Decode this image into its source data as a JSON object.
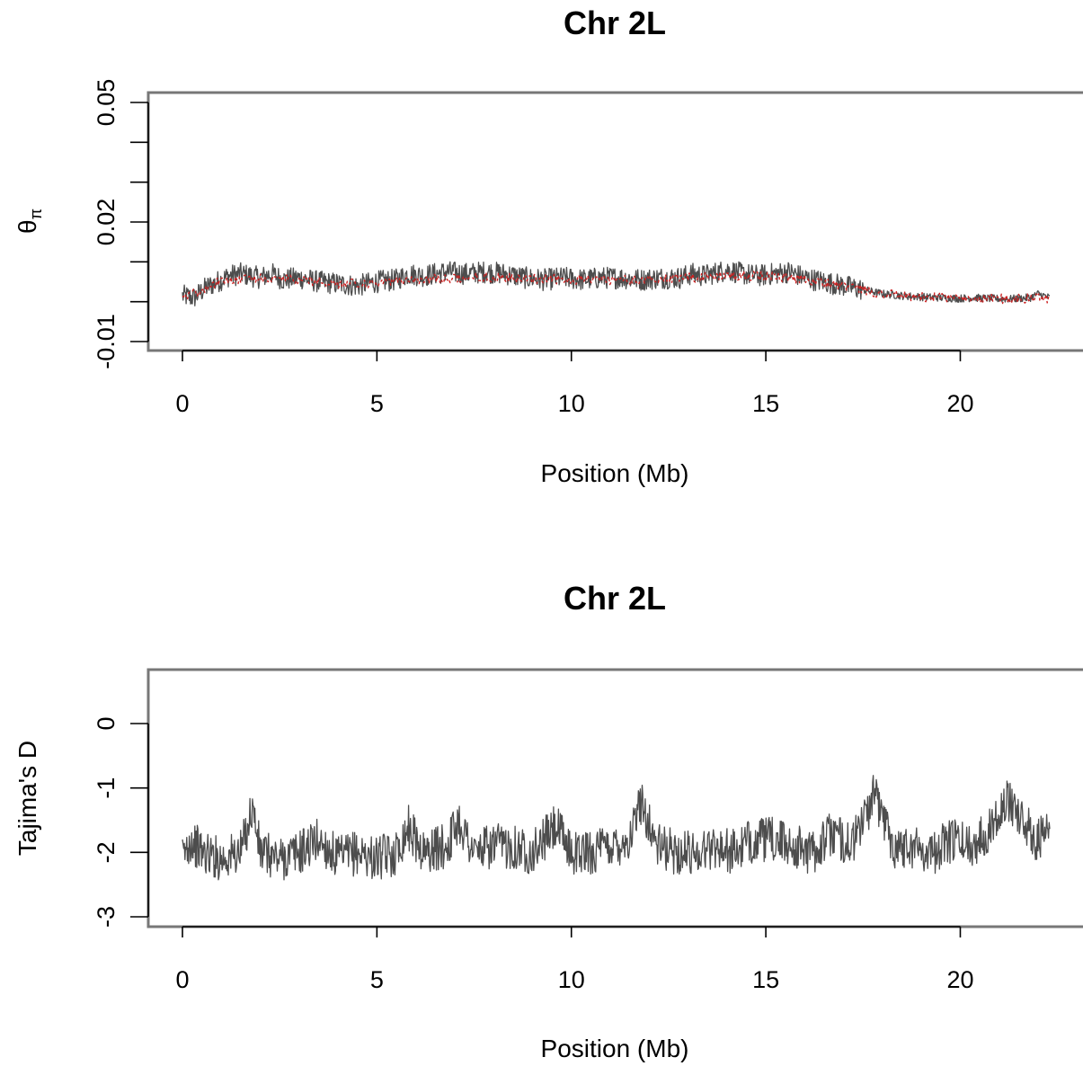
{
  "chart_data": [
    {
      "type": "line",
      "title": "Chr 2L",
      "xlabel": "Position (Mb)",
      "ylabel": "θπ",
      "ylabel_main": "θ",
      "ylabel_sub": "π",
      "xlim": [
        -0.88,
        23.3
      ],
      "ylim": [
        -0.0122,
        0.0528
      ],
      "xticks": [
        0,
        5,
        10,
        15,
        20
      ],
      "xtick_labels": [
        "0",
        "5",
        "10",
        "15",
        "20"
      ],
      "yticks": [
        -0.01,
        0.0,
        0.01,
        0.02,
        0.03,
        0.04,
        0.05
      ],
      "ytick_labels": [
        "-0.01",
        "",
        "",
        "0.02",
        "",
        "",
        "0.05"
      ],
      "grid": false,
      "series": [
        {
          "role": "windowed",
          "color": "#4d4d4d",
          "x": [
            0.0,
            0.3,
            0.6,
            1.0,
            1.2,
            1.5,
            2.0,
            2.3,
            2.6,
            3.0,
            3.5,
            4.0,
            4.5,
            5.0,
            5.5,
            5.8,
            6.2,
            6.8,
            7.3,
            7.8,
            8.3,
            8.8,
            9.3,
            9.8,
            10.3,
            10.8,
            11.3,
            11.8,
            12.3,
            12.8,
            13.1,
            13.4,
            13.8,
            14.0,
            14.4,
            14.8,
            15.2,
            15.6,
            16.0,
            16.5,
            17.0,
            17.5,
            18.0,
            18.5,
            19.0,
            19.5,
            20.0,
            20.3,
            20.8,
            21.3,
            21.8,
            22.0,
            22.3
          ],
          "y": [
            0.0015,
            0.001,
            0.0035,
            0.0055,
            0.0065,
            0.007,
            0.006,
            0.007,
            0.0055,
            0.006,
            0.005,
            0.0045,
            0.004,
            0.005,
            0.0055,
            0.007,
            0.0065,
            0.0075,
            0.007,
            0.0075,
            0.007,
            0.006,
            0.0055,
            0.006,
            0.0055,
            0.006,
            0.006,
            0.0055,
            0.006,
            0.006,
            0.007,
            0.0065,
            0.0075,
            0.008,
            0.007,
            0.0065,
            0.007,
            0.0075,
            0.006,
            0.005,
            0.004,
            0.003,
            0.002,
            0.0015,
            0.0012,
            0.001,
            0.0008,
            0.001,
            0.0008,
            0.0007,
            0.001,
            0.002,
            0.001
          ]
        },
        {
          "role": "smoothed",
          "color": "#cc2222",
          "x": [
            0.0,
            0.5,
            1.0,
            2.0,
            3.0,
            4.0,
            5.0,
            6.0,
            7.0,
            8.0,
            9.0,
            10.0,
            11.0,
            12.0,
            13.0,
            14.0,
            15.0,
            16.0,
            17.0,
            17.5,
            18.0,
            19.0,
            20.0,
            21.0,
            22.0,
            22.3
          ],
          "y": [
            0.0012,
            0.003,
            0.0055,
            0.006,
            0.0055,
            0.0045,
            0.0045,
            0.0055,
            0.006,
            0.0062,
            0.0058,
            0.0055,
            0.0055,
            0.0055,
            0.006,
            0.0065,
            0.0065,
            0.0055,
            0.004,
            0.003,
            0.002,
            0.0012,
            0.0008,
            0.0007,
            0.0008,
            0.0008
          ]
        }
      ]
    },
    {
      "type": "line",
      "title": "Chr 2L",
      "xlabel": "Position (Mb)",
      "ylabel": "Tajima's D",
      "xlim": [
        -0.88,
        23.3
      ],
      "ylim": [
        -3.15,
        0.85
      ],
      "xticks": [
        0,
        5,
        10,
        15,
        20
      ],
      "xtick_labels": [
        "0",
        "5",
        "10",
        "15",
        "20"
      ],
      "yticks": [
        -3,
        -2,
        -1,
        0
      ],
      "ytick_labels": [
        "-3",
        "-2",
        "-1",
        "0"
      ],
      "grid": false,
      "series": [
        {
          "role": "windowed",
          "color": "#4d4d4d",
          "x": [
            0.0,
            0.2,
            0.5,
            1.0,
            1.5,
            1.8,
            2.0,
            2.5,
            3.0,
            3.5,
            4.0,
            4.5,
            5.0,
            5.5,
            5.8,
            6.2,
            6.8,
            7.1,
            7.5,
            8.0,
            8.5,
            9.0,
            9.6,
            10.0,
            10.5,
            11.0,
            11.5,
            11.8,
            12.2,
            12.7,
            13.2,
            13.7,
            14.2,
            14.7,
            15.2,
            15.7,
            16.2,
            16.7,
            17.2,
            17.8,
            18.3,
            18.8,
            19.3,
            19.8,
            20.3,
            20.8,
            21.0,
            21.3,
            21.5,
            21.8,
            22.0,
            22.3
          ],
          "y": [
            -2.1,
            -1.8,
            -2.0,
            -2.1,
            -2.0,
            -1.3,
            -2.0,
            -2.1,
            -2.0,
            -1.8,
            -2.1,
            -2.0,
            -2.1,
            -2.0,
            -1.6,
            -2.0,
            -1.9,
            -1.5,
            -2.0,
            -1.9,
            -1.9,
            -2.0,
            -1.6,
            -2.0,
            -2.0,
            -1.9,
            -1.8,
            -1.2,
            -1.9,
            -2.0,
            -2.0,
            -1.9,
            -2.0,
            -1.8,
            -1.8,
            -1.9,
            -2.0,
            -1.7,
            -1.9,
            -1.1,
            -1.9,
            -1.9,
            -2.0,
            -1.8,
            -1.9,
            -1.6,
            -1.3,
            -1.2,
            -1.4,
            -1.7,
            -1.8,
            -1.7
          ]
        }
      ]
    }
  ]
}
